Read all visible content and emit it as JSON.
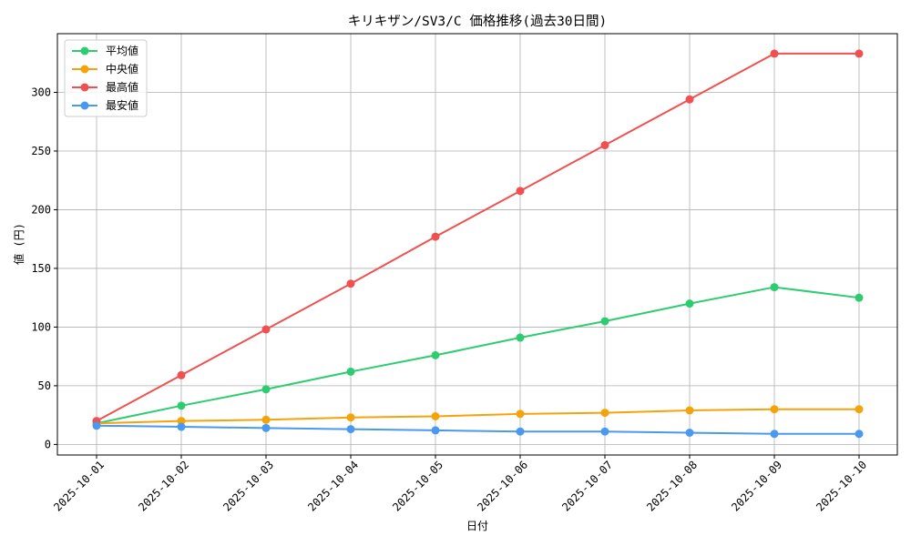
{
  "chart_data": {
    "type": "line",
    "title": "キリキザン/SV3/C 価格推移(過去30日間)",
    "xlabel": "日付",
    "ylabel": "値 (円)",
    "categories": [
      "2025-10-01",
      "2025-10-02",
      "2025-10-03",
      "2025-10-04",
      "2025-10-05",
      "2025-10-06",
      "2025-10-07",
      "2025-10-08",
      "2025-10-09",
      "2025-10-10"
    ],
    "ylim": [
      -9,
      350
    ],
    "yticks": [
      0,
      50,
      100,
      150,
      200,
      250,
      300
    ],
    "grid": true,
    "legend_position": "top-left",
    "series": [
      {
        "name": "平均値",
        "color": "#2ecc71",
        "values": [
          18,
          33,
          47,
          62,
          76,
          91,
          105,
          120,
          134,
          125
        ]
      },
      {
        "name": "中央値",
        "color": "#f5a30a",
        "values": [
          18,
          20,
          21,
          23,
          24,
          26,
          27,
          29,
          30,
          30
        ]
      },
      {
        "name": "最高値",
        "color": "#f05050",
        "values": [
          20,
          59,
          98,
          137,
          177,
          216,
          255,
          294,
          333,
          333
        ]
      },
      {
        "name": "最安値",
        "color": "#4a99f0",
        "values": [
          16,
          15,
          14,
          13,
          12,
          11,
          11,
          10,
          9,
          9
        ]
      }
    ]
  }
}
